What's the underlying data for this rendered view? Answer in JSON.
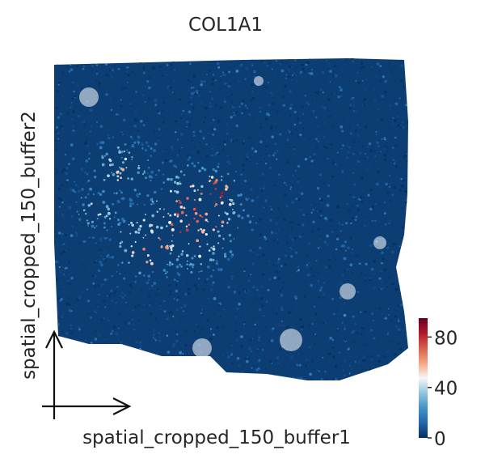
{
  "chart_data": {
    "type": "scatter",
    "title": "COL1A1",
    "xlabel": "spatial_cropped_150_buffer1",
    "ylabel": "spatial_cropped_150_buffer2",
    "grid": false,
    "legend": "none",
    "colorbar": {
      "label": "",
      "cmap": "RdBu_r",
      "range": [
        0,
        95
      ],
      "ticks": [
        0,
        40,
        80
      ],
      "colors": [
        "#053061",
        "#2166ac",
        "#4393c3",
        "#92c5de",
        "#f7f7f7",
        "#f4a582",
        "#d6604d",
        "#b2182b",
        "#67001f"
      ]
    }
  }
}
